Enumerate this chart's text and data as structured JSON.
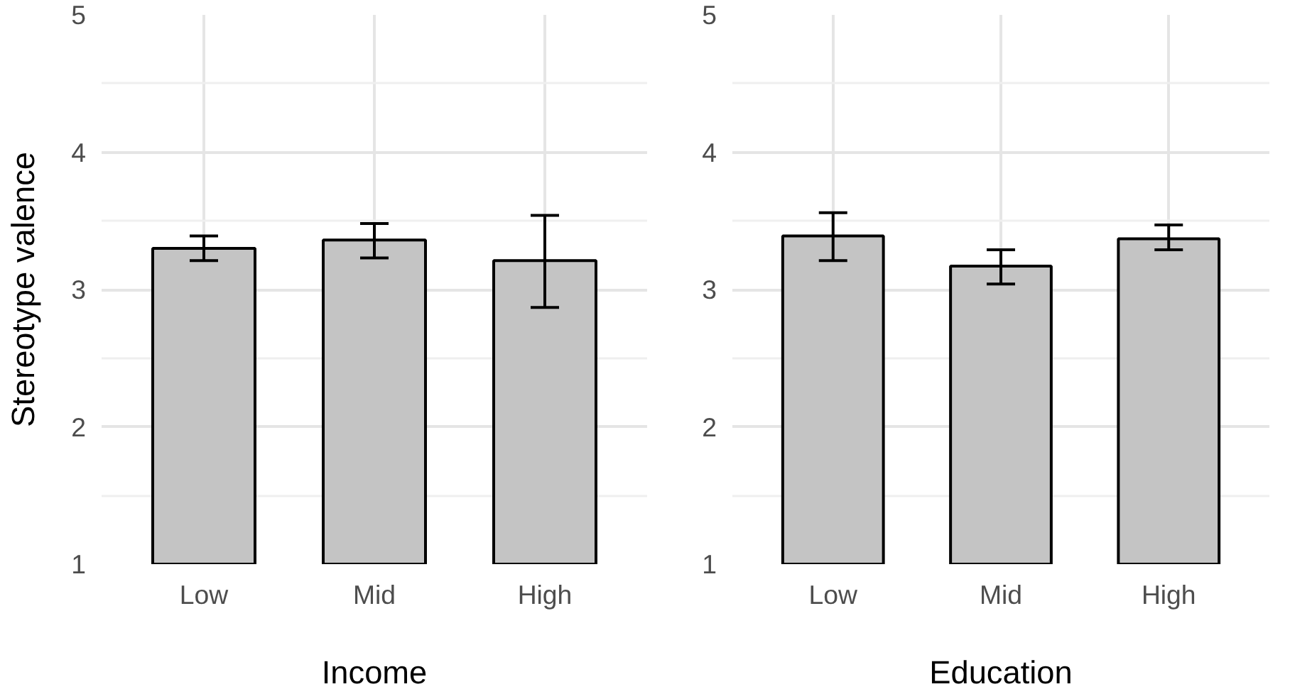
{
  "chart_data": [
    {
      "type": "bar",
      "xlabel": "Income",
      "ylabel": "Stereotype valence",
      "categories": [
        "Low",
        "Mid",
        "High"
      ],
      "values": [
        3.3,
        3.36,
        3.21
      ],
      "errors": [
        [
          3.21,
          3.39
        ],
        [
          3.23,
          3.48
        ],
        [
          2.87,
          3.54
        ]
      ],
      "color": "#c4c4c4",
      "ylim": [
        1,
        5
      ],
      "yticks": [
        1,
        2,
        3,
        4,
        5
      ],
      "grid": true
    },
    {
      "type": "bar",
      "xlabel": "Education",
      "categories": [
        "Low",
        "Mid",
        "High"
      ],
      "values": [
        3.39,
        3.17,
        3.37
      ],
      "errors": [
        [
          3.21,
          3.56
        ],
        [
          3.04,
          3.29
        ],
        [
          3.29,
          3.47
        ]
      ],
      "color": "#c4c4c4",
      "ylim": [
        1,
        5
      ],
      "yticks": [
        1,
        2,
        3,
        4,
        5
      ],
      "grid": true
    }
  ]
}
